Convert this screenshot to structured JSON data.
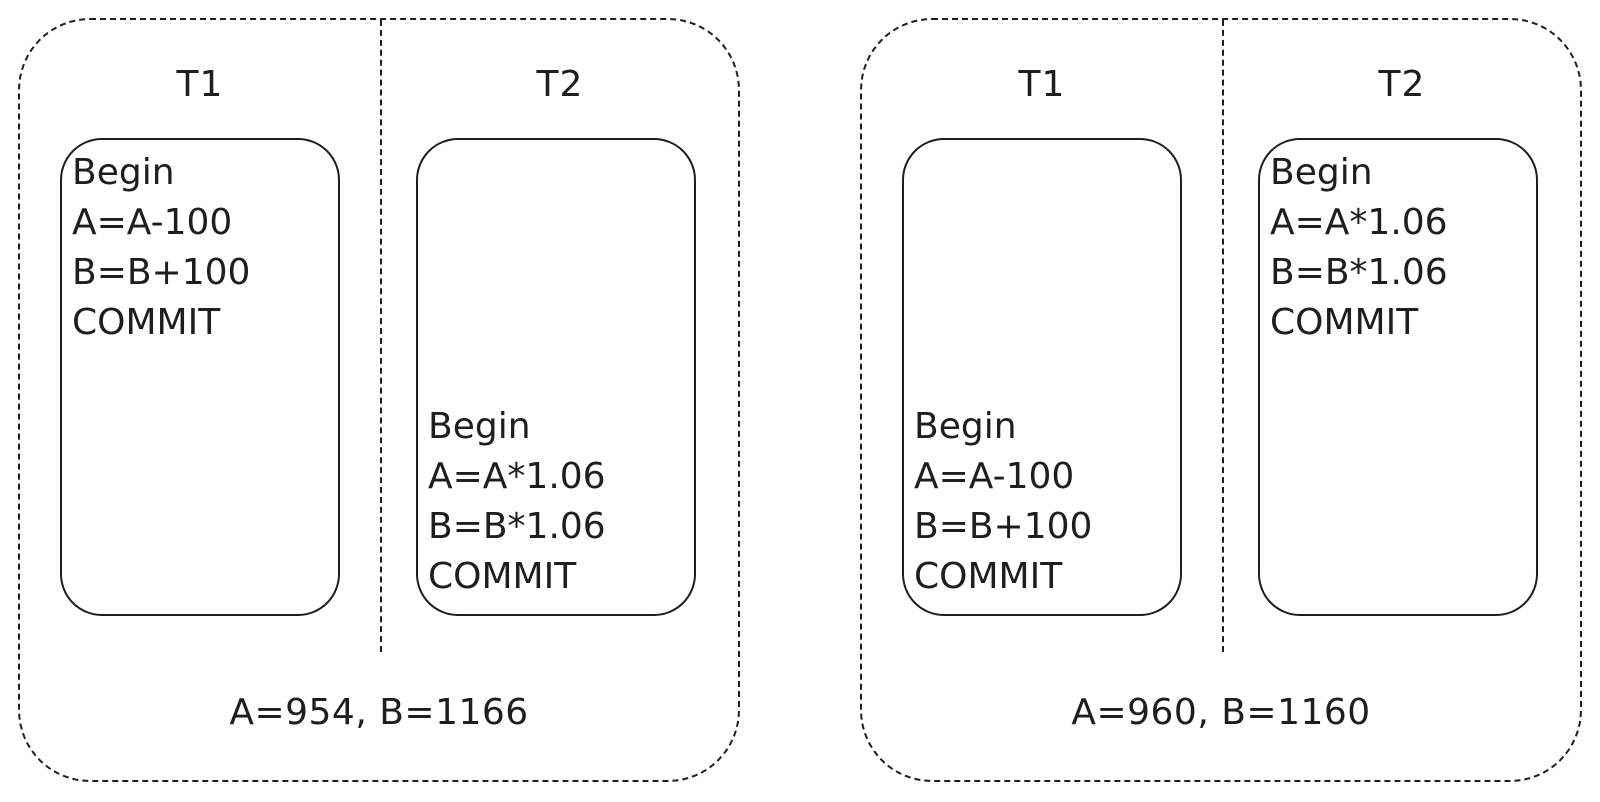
{
  "schedules": [
    {
      "t1_label": "T1",
      "t2_label": "T2",
      "t1_ops": [
        "Begin",
        "A=A-100",
        "B=B+100",
        "COMMIT"
      ],
      "t2_ops": [
        "Begin",
        "A=A*1.06",
        "B=B*1.06",
        "COMMIT"
      ],
      "result": "A=954, B=1166"
    },
    {
      "t1_label": "T1",
      "t2_label": "T2",
      "t1_ops": [
        "Begin",
        "A=A-100",
        "B=B+100",
        "COMMIT"
      ],
      "t2_ops": [
        "Begin",
        "A=A*1.06",
        "B=B*1.06",
        "COMMIT"
      ],
      "result": "A=960, B=1160"
    }
  ]
}
